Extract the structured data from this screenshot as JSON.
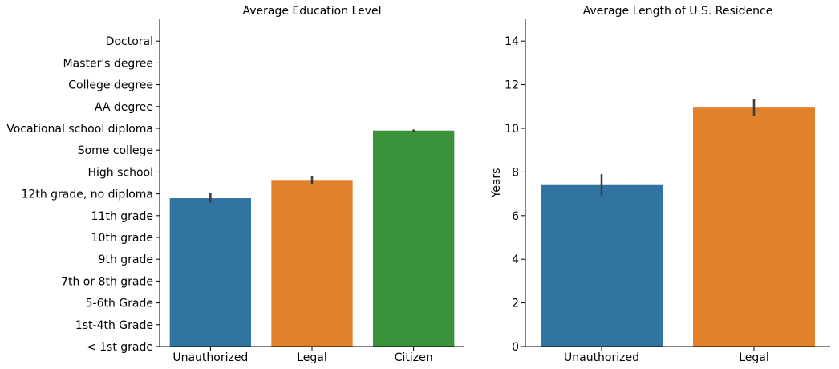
{
  "chart_data": [
    {
      "type": "bar",
      "title": "Average Education Level",
      "xlabel": "",
      "ylabel": "",
      "categories": [
        "Unauthorized",
        "Legal",
        "Citizen"
      ],
      "values": [
        6.8,
        7.6,
        9.9
      ],
      "error_bars": [
        [
          6.6,
          7.05
        ],
        [
          7.45,
          7.8
        ],
        [
          9.85,
          9.95
        ]
      ],
      "colors": [
        "#3274a1",
        "#e1812c",
        "#3a923a"
      ],
      "yticks": [
        0,
        1,
        2,
        3,
        4,
        5,
        6,
        7,
        8,
        9,
        10,
        11,
        12,
        13,
        14
      ],
      "ytick_labels": [
        "< 1st grade",
        "1st-4th Grade",
        "5-6th Grade",
        "7th or 8th grade",
        "9th grade",
        "10th grade",
        "11th grade",
        "12th grade, no diploma",
        "High school",
        "Some college",
        "Vocational school diploma",
        "AA degree",
        "College degree",
        "Master's degree",
        "Doctoral"
      ],
      "ylim": [
        0,
        15
      ],
      "grid": false
    },
    {
      "type": "bar",
      "title": "Average Length of U.S. Residence",
      "xlabel": "",
      "ylabel": "Years",
      "categories": [
        "Unauthorized",
        "Legal"
      ],
      "values": [
        7.4,
        10.95
      ],
      "error_bars": [
        [
          6.9,
          7.9
        ],
        [
          10.55,
          11.35
        ]
      ],
      "colors": [
        "#3274a1",
        "#e1812c"
      ],
      "yticks": [
        0,
        2,
        4,
        6,
        8,
        10,
        12,
        14
      ],
      "ytick_labels": [
        "0",
        "2",
        "4",
        "6",
        "8",
        "10",
        "12",
        "14"
      ],
      "ylim": [
        0,
        15
      ],
      "grid": false
    }
  ]
}
